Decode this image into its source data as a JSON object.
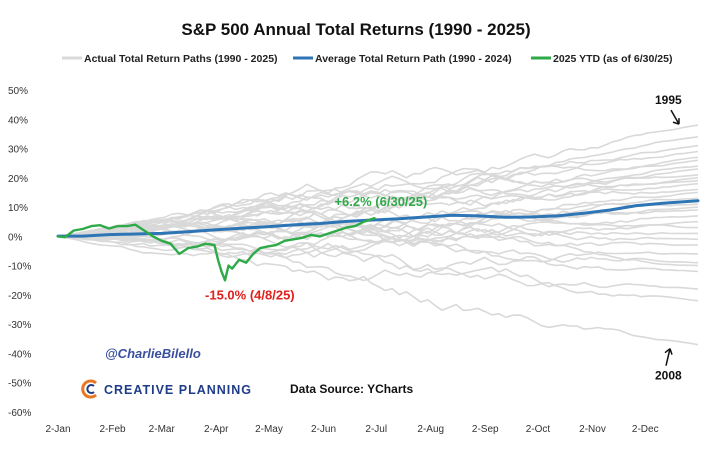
{
  "chart_data": {
    "type": "line",
    "title": "S&P 500 Annual Total Returns (1990 - 2025)",
    "ylim": [
      -60,
      50
    ],
    "y_ticks": [
      50,
      40,
      30,
      20,
      10,
      0,
      -10,
      -20,
      -30,
      -40,
      -50,
      -60
    ],
    "y_tick_labels": [
      "50%",
      "40%",
      "30%",
      "20%",
      "10%",
      "0%",
      "-10%",
      "-20%",
      "-30%",
      "-40%",
      "-50%",
      "-60%"
    ],
    "x_ticks": [
      "2-Jan",
      "2-Feb",
      "2-Mar",
      "2-Apr",
      "2-May",
      "2-Jun",
      "2-Jul",
      "2-Aug",
      "2-Sep",
      "2-Oct",
      "2-Nov",
      "2-Dec"
    ],
    "x_unit": "day of year",
    "x_tick_days": [
      1,
      32,
      60,
      91,
      121,
      152,
      182,
      213,
      244,
      274,
      305,
      335
    ],
    "xlim": [
      1,
      365
    ],
    "legend": [
      {
        "label": "Actual Total Return Paths (1990 - 2025)",
        "color": "#d9d9d9"
      },
      {
        "label": "Average Total Return Path (1990 - 2024)",
        "color": "#2e75b6"
      },
      {
        "label": "2025 YTD (as of 6/30/25)",
        "color": "#2eaa48"
      }
    ],
    "series": [
      {
        "name": "Average Total Return Path (1990 - 2024)",
        "color": "#2e75b6",
        "x": [
          1,
          15,
          30,
          45,
          60,
          75,
          90,
          105,
          120,
          135,
          150,
          165,
          180,
          195,
          210,
          225,
          240,
          255,
          270,
          285,
          300,
          315,
          330,
          345,
          365
        ],
        "y": [
          0.1,
          0.1,
          0.6,
          0.8,
          1.0,
          1.6,
          2.2,
          2.8,
          3.3,
          3.9,
          4.4,
          5.1,
          5.6,
          6.0,
          6.6,
          7.2,
          7.0,
          6.5,
          6.6,
          7.0,
          7.9,
          9.0,
          10.5,
          11.3,
          12.2
        ]
      },
      {
        "name": "2025 YTD (as of 6/30/25)",
        "color": "#2eaa48",
        "x": [
          1,
          5,
          10,
          15,
          20,
          25,
          30,
          35,
          40,
          45,
          50,
          55,
          60,
          65,
          70,
          75,
          80,
          85,
          90,
          92,
          94,
          96,
          98,
          100,
          104,
          108,
          112,
          116,
          120,
          125,
          130,
          135,
          140,
          145,
          150,
          155,
          160,
          165,
          170,
          175,
          181
        ],
        "y": [
          0.0,
          -0.3,
          2.0,
          2.5,
          3.5,
          3.8,
          2.7,
          3.5,
          3.5,
          4.0,
          2.0,
          0.0,
          -1.5,
          -2.5,
          -6.0,
          -4.0,
          -3.5,
          -2.5,
          -3.0,
          -8.0,
          -12.0,
          -15.0,
          -10.0,
          -11.0,
          -8.0,
          -9.0,
          -6.0,
          -4.0,
          -3.5,
          -3.0,
          -1.5,
          -1.0,
          -0.5,
          0.5,
          0.0,
          1.0,
          2.0,
          3.0,
          3.5,
          5.0,
          6.2
        ]
      }
    ],
    "background_paths": [
      {
        "end_y": 38
      },
      {
        "end_y": 34
      },
      {
        "end_y": 31
      },
      {
        "end_y": 29
      },
      {
        "end_y": 27
      },
      {
        "end_y": 26
      },
      {
        "end_y": 24
      },
      {
        "end_y": 23
      },
      {
        "end_y": 21
      },
      {
        "end_y": 20
      },
      {
        "end_y": 19
      },
      {
        "end_y": 18
      },
      {
        "end_y": 16
      },
      {
        "end_y": 15
      },
      {
        "end_y": 13
      },
      {
        "end_y": 11
      },
      {
        "end_y": 10
      },
      {
        "end_y": 9
      },
      {
        "end_y": 7
      },
      {
        "end_y": 5
      },
      {
        "end_y": 3
      },
      {
        "end_y": 1
      },
      {
        "end_y": -1
      },
      {
        "end_y": -3
      },
      {
        "end_y": -6
      },
      {
        "end_y": -9
      },
      {
        "end_y": -10
      },
      {
        "end_y": -12
      },
      {
        "end_y": -18
      },
      {
        "end_y": -22
      },
      {
        "end_y": -37
      }
    ],
    "annotations": [
      {
        "id": "ytd",
        "text": "+6.2% (6/30/25)",
        "x": 181,
        "y": 6.2,
        "color": "#2eaa48"
      },
      {
        "id": "low",
        "text": "-15.0% (4/8/25)",
        "x": 96,
        "y": -15.0,
        "color": "#e0201c"
      },
      {
        "id": "y1995",
        "text": "1995",
        "x": 365,
        "y": 38
      },
      {
        "id": "y2008",
        "text": "2008",
        "x": 365,
        "y": -37
      }
    ]
  },
  "watermark": {
    "handle": "@CharlieBilello",
    "brand": "CREATIVE PLANNING",
    "source": "Data Source: YCharts"
  },
  "colors": {
    "average": "#2e75b6",
    "ytd": "#2eaa48",
    "low": "#e0201c",
    "paths": "#d9d9d9"
  }
}
